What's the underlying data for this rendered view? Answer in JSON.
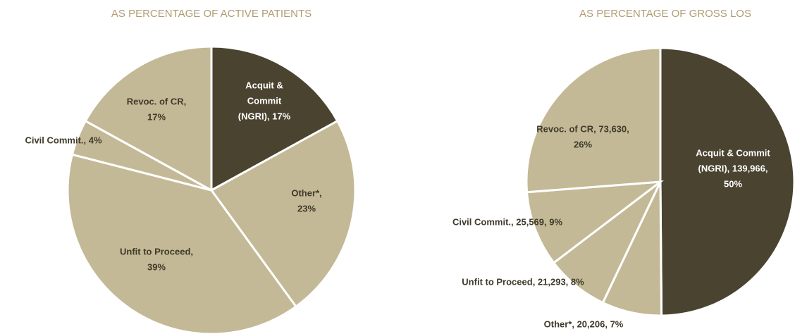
{
  "chart_data": [
    {
      "type": "pie",
      "title": "AS PERCENTAGE OF ACTIVE PATIENTS",
      "categories": [
        "Acquit & Commit (NGRI)",
        "Other*",
        "Unfit to Proceed",
        "Civil Commit.",
        "Revoc. of CR"
      ],
      "values": [
        17,
        23,
        39,
        4,
        17
      ],
      "data_labels": [
        [
          "Acquit &",
          "Commit",
          "(NGRI), 17%"
        ],
        [
          "Other*,",
          "23%"
        ],
        [
          "Unfit to Proceed,",
          "39%"
        ],
        [
          "Civil Commit., 4%"
        ],
        [
          "Revoc. of CR,",
          "17%"
        ]
      ],
      "colors": [
        "#4a4330",
        "#c4b996",
        "#c4b996",
        "#c4b996",
        "#c4b996"
      ]
    },
    {
      "type": "pie",
      "title": "AS PERCENTAGE OF GROSS LOS",
      "categories": [
        "Acquit & Commit (NGRI)",
        "Other*",
        "Unfit to Proceed",
        "Civil Commit.",
        "Revoc. of CR"
      ],
      "values": [
        139966,
        20206,
        21293,
        25569,
        73630
      ],
      "data_labels": [
        [
          "Acquit & Commit",
          "(NGRI), 139,966,",
          "50%"
        ],
        [
          "Other*, 20,206, 7%"
        ],
        [
          "Unfit to Proceed, 21,293, 8%"
        ],
        [
          "Civil Commit., 25,569, 9%"
        ],
        [
          "Revoc. of CR, 73,630,",
          "26%"
        ]
      ],
      "colors": [
        "#4a4330",
        "#c4b996",
        "#c4b996",
        "#c4b996",
        "#c4b996"
      ]
    }
  ]
}
